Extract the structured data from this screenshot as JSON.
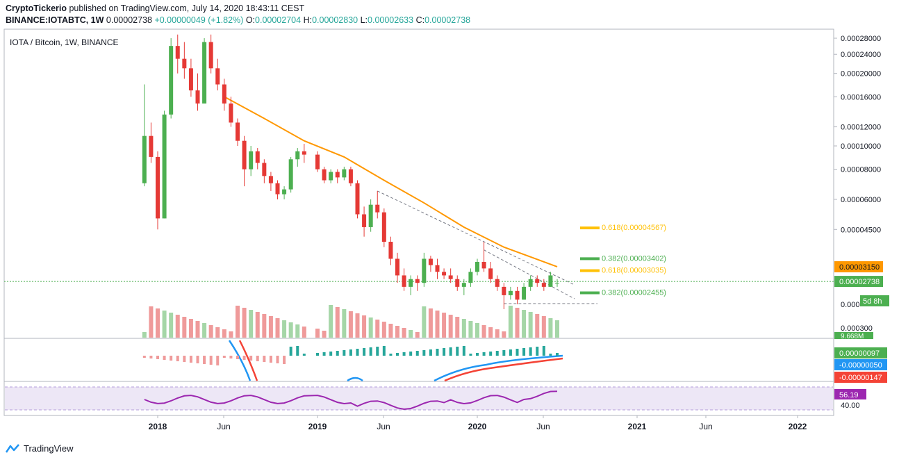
{
  "header": {
    "publisher": "CryptoTickerio",
    "published_text": "published on TradingView.com, July 14, 2020 18:43:11 CEST",
    "symbol": "BINANCE:IOTABTC, 1W",
    "last": "0.00002738",
    "change": "+0.00000049 (+1.82%)",
    "open_label": "O:",
    "open": "0.00002704",
    "high_label": "H:",
    "high": "0.00002830",
    "low_label": "L:",
    "low": "0.00002633",
    "close_label": "C:",
    "close": "0.00002738"
  },
  "legend": "IOTA / Bitcoin, 1W, BINANCE",
  "footer": {
    "brand": "TradingView"
  },
  "colors": {
    "up": "#4caf50",
    "down": "#e53935",
    "ma": "#ff9800",
    "macd": "#2196f3",
    "signal": "#f44336",
    "rsi": "#9c27b0",
    "price_line": "#4caf50",
    "band": "#ede7f6"
  },
  "chart_data": {
    "type": "candlestick",
    "title": "IOTA / Bitcoin, 1W, BINANCE",
    "scale": "log",
    "x_ticks": [
      "2018",
      "Jun",
      "2019",
      "Jun",
      "2020",
      "Jun",
      "2021",
      "Jun",
      "2022"
    ],
    "y_ticks": [
      "0.00028000",
      "0.00024000",
      "0.00020000",
      "0.00016000",
      "0.00012000",
      "0.00010000",
      "0.00008000",
      "0.00006000",
      "0.00004500",
      "0.00003150",
      "0.00002738",
      "0.000"
    ],
    "volume_ticks": [
      "0.000300",
      "9.668M"
    ],
    "price_labels": {
      "ma_value": "0.00003150",
      "last_price": "0.00002738",
      "countdown": "5d 8h"
    },
    "fib_levels": [
      {
        "label": "0.618(0.00004567)",
        "value": 4.567e-05
      },
      {
        "label": "0.382(0.00003402)",
        "value": 3.402e-05
      },
      {
        "label": "0.618(0.00003035)",
        "value": 3.035e-05
      },
      {
        "label": "0.382(0.00002455)",
        "value": 2.455e-05
      }
    ],
    "candles": [
      {
        "t": "2017-12",
        "o": 7e-05,
        "h": 0.00018,
        "l": 6.8e-05,
        "c": 0.00011
      },
      {
        "t": "2017-12b",
        "o": 0.00011,
        "h": 0.000125,
        "l": 8.5e-05,
        "c": 9e-05
      },
      {
        "t": "2018-01",
        "o": 9e-05,
        "h": 9.5e-05,
        "l": 4.5e-05,
        "c": 5e-05
      },
      {
        "t": "2018-01b",
        "o": 5e-05,
        "h": 0.00014,
        "l": 5e-05,
        "c": 0.000135
      },
      {
        "t": "2018-02",
        "o": 0.000135,
        "h": 0.00028,
        "l": 0.00013,
        "c": 0.00026
      },
      {
        "t": "2018-02b",
        "o": 0.00026,
        "h": 0.00029,
        "l": 0.0002,
        "c": 0.00023
      },
      {
        "t": "2018-03",
        "o": 0.00023,
        "h": 0.00027,
        "l": 0.00019,
        "c": 0.00021
      },
      {
        "t": "2018-03b",
        "o": 0.00021,
        "h": 0.00023,
        "l": 0.00016,
        "c": 0.00017
      },
      {
        "t": "2018-04",
        "o": 0.00017,
        "h": 0.0002,
        "l": 0.00014,
        "c": 0.00015
      },
      {
        "t": "2018-04b",
        "o": 0.00015,
        "h": 0.00028,
        "l": 0.00015,
        "c": 0.00027
      },
      {
        "t": "2018-05",
        "o": 0.00027,
        "h": 0.00029,
        "l": 0.0002,
        "c": 0.00021
      },
      {
        "t": "2018-05b",
        "o": 0.00021,
        "h": 0.00023,
        "l": 0.00017,
        "c": 0.00018
      },
      {
        "t": "2018-06",
        "o": 0.00018,
        "h": 0.00019,
        "l": 0.00014,
        "c": 0.00015
      },
      {
        "t": "2018-06b",
        "o": 0.00015,
        "h": 0.00016,
        "l": 0.00012,
        "c": 0.000125
      },
      {
        "t": "2018-07",
        "o": 0.000125,
        "h": 0.00013,
        "l": 0.0001,
        "c": 0.000105
      },
      {
        "t": "2018-07b",
        "o": 0.000105,
        "h": 0.00011,
        "l": 6.8e-05,
        "c": 8e-05
      },
      {
        "t": "2018-08",
        "o": 8e-05,
        "h": 0.0001,
        "l": 7.5e-05,
        "c": 9.5e-05
      },
      {
        "t": "2018-08b",
        "o": 9.5e-05,
        "h": 9.8e-05,
        "l": 8e-05,
        "c": 8.5e-05
      },
      {
        "t": "2018-09",
        "o": 8.5e-05,
        "h": 8.8e-05,
        "l": 7e-05,
        "c": 7.5e-05
      },
      {
        "t": "2018-09b",
        "o": 7.5e-05,
        "h": 7.8e-05,
        "l": 6.5e-05,
        "c": 7e-05
      },
      {
        "t": "2018-10",
        "o": 7e-05,
        "h": 7.2e-05,
        "l": 6e-05,
        "c": 6.3e-05
      },
      {
        "t": "2018-10b",
        "o": 6.3e-05,
        "h": 6.8e-05,
        "l": 6e-05,
        "c": 6.6e-05
      },
      {
        "t": "2018-11",
        "o": 6.6e-05,
        "h": 9e-05,
        "l": 6.4e-05,
        "c": 8.8e-05
      },
      {
        "t": "2018-11b",
        "o": 8.8e-05,
        "h": 9.8e-05,
        "l": 8.2e-05,
        "c": 9.5e-05
      },
      {
        "t": "2018-12",
        "o": 9.5e-05,
        "h": 0.000102,
        "l": 8.5e-05,
        "c": 9.2e-05
      },
      {
        "t": "2019-01",
        "o": 9.2e-05,
        "h": 9.5e-05,
        "l": 7.8e-05,
        "c": 8e-05
      },
      {
        "t": "2019-01b",
        "o": 8e-05,
        "h": 8.2e-05,
        "l": 7e-05,
        "c": 7.2e-05
      },
      {
        "t": "2019-02",
        "o": 7.2e-05,
        "h": 8e-05,
        "l": 7e-05,
        "c": 7.8e-05
      },
      {
        "t": "2019-02b",
        "o": 7.8e-05,
        "h": 8e-05,
        "l": 7e-05,
        "c": 7.4e-05
      },
      {
        "t": "2019-03",
        "o": 7.4e-05,
        "h": 8.2e-05,
        "l": 7.2e-05,
        "c": 8e-05
      },
      {
        "t": "2019-03b",
        "o": 8e-05,
        "h": 8.2e-05,
        "l": 6.8e-05,
        "c": 7e-05
      },
      {
        "t": "2019-04",
        "o": 7e-05,
        "h": 7.2e-05,
        "l": 5e-05,
        "c": 5.2e-05
      },
      {
        "t": "2019-04b",
        "o": 5.2e-05,
        "h": 5.6e-05,
        "l": 4.2e-05,
        "c": 4.6e-05
      },
      {
        "t": "2019-05",
        "o": 4.6e-05,
        "h": 6e-05,
        "l": 4.4e-05,
        "c": 5.7e-05
      },
      {
        "t": "2019-05b",
        "o": 5.7e-05,
        "h": 6.5e-05,
        "l": 5e-05,
        "c": 5.3e-05
      },
      {
        "t": "2019-06",
        "o": 5.3e-05,
        "h": 5.5e-05,
        "l": 3.8e-05,
        "c": 4e-05
      },
      {
        "t": "2019-06b",
        "o": 4e-05,
        "h": 4.2e-05,
        "l": 3.2e-05,
        "c": 3.4e-05
      },
      {
        "t": "2019-07",
        "o": 3.4e-05,
        "h": 3.6e-05,
        "l": 2.7e-05,
        "c": 2.9e-05
      },
      {
        "t": "2019-07b",
        "o": 2.9e-05,
        "h": 3.1e-05,
        "l": 2.5e-05,
        "c": 2.6e-05
      },
      {
        "t": "2019-08",
        "o": 2.6e-05,
        "h": 2.9e-05,
        "l": 2.4e-05,
        "c": 2.8e-05
      },
      {
        "t": "2019-08b",
        "o": 2.8e-05,
        "h": 2.9e-05,
        "l": 2.5e-05,
        "c": 2.7e-05
      },
      {
        "t": "2019-09",
        "o": 2.7e-05,
        "h": 3.6e-05,
        "l": 2.6e-05,
        "c": 3.4e-05
      },
      {
        "t": "2019-09b",
        "o": 3.4e-05,
        "h": 3.5e-05,
        "l": 3e-05,
        "c": 3.2e-05
      },
      {
        "t": "2019-10",
        "o": 3.2e-05,
        "h": 3.4e-05,
        "l": 2.8e-05,
        "c": 3e-05
      },
      {
        "t": "2019-10b",
        "o": 3e-05,
        "h": 3.1e-05,
        "l": 2.8e-05,
        "c": 2.9e-05
      },
      {
        "t": "2019-11",
        "o": 2.9e-05,
        "h": 3.1e-05,
        "l": 2.7e-05,
        "c": 2.8e-05
      },
      {
        "t": "2019-11b",
        "o": 2.8e-05,
        "h": 2.9e-05,
        "l": 2.5e-05,
        "c": 2.6e-05
      },
      {
        "t": "2019-12",
        "o": 2.6e-05,
        "h": 2.8e-05,
        "l": 2.4e-05,
        "c": 2.7e-05
      },
      {
        "t": "2019-12b",
        "o": 2.7e-05,
        "h": 3.1e-05,
        "l": 2.6e-05,
        "c": 3e-05
      },
      {
        "t": "2020-01",
        "o": 3e-05,
        "h": 3.4e-05,
        "l": 2.9e-05,
        "c": 3.3e-05
      },
      {
        "t": "2020-01b",
        "o": 3.3e-05,
        "h": 4e-05,
        "l": 3e-05,
        "c": 3.1e-05
      },
      {
        "t": "2020-02",
        "o": 3.1e-05,
        "h": 3.3e-05,
        "l": 2.7e-05,
        "c": 2.8e-05
      },
      {
        "t": "2020-02b",
        "o": 2.8e-05,
        "h": 2.9e-05,
        "l": 2.5e-05,
        "c": 2.6e-05
      },
      {
        "t": "2020-03",
        "o": 2.6e-05,
        "h": 2.7e-05,
        "l": 2.1e-05,
        "c": 2.4e-05
      },
      {
        "t": "2020-03b",
        "o": 2.4e-05,
        "h": 2.6e-05,
        "l": 2.3e-05,
        "c": 2.5e-05
      },
      {
        "t": "2020-04",
        "o": 2.5e-05,
        "h": 2.6e-05,
        "l": 2.2e-05,
        "c": 2.3e-05
      },
      {
        "t": "2020-04b",
        "o": 2.3e-05,
        "h": 2.7e-05,
        "l": 2.3e-05,
        "c": 2.6e-05
      },
      {
        "t": "2020-05",
        "o": 2.6e-05,
        "h": 2.9e-05,
        "l": 2.5e-05,
        "c": 2.8e-05
      },
      {
        "t": "2020-05b",
        "o": 2.8e-05,
        "h": 2.9e-05,
        "l": 2.6e-05,
        "c": 2.7e-05
      },
      {
        "t": "2020-06",
        "o": 2.7e-05,
        "h": 2.8e-05,
        "l": 2.5e-05,
        "c": 2.6e-05
      },
      {
        "t": "2020-06b",
        "o": 2.6e-05,
        "h": 3e-05,
        "l": 2.6e-05,
        "c": 2.9e-05
      },
      {
        "t": "2020-07",
        "o": 2.7e-05,
        "h": 2.8e-05,
        "l": 2.6e-05,
        "c": 2.7e-05
      }
    ],
    "ma_series": [
      {
        "t": "2018-06",
        "v": 0.00016
      },
      {
        "t": "2018-09",
        "v": 0.00013
      },
      {
        "t": "2018-12",
        "v": 0.000105
      },
      {
        "t": "2019-03",
        "v": 9e-05
      },
      {
        "t": "2019-06",
        "v": 7.2e-05
      },
      {
        "t": "2019-09",
        "v": 5.8e-05
      },
      {
        "t": "2019-12",
        "v": 4.6e-05
      },
      {
        "t": "2020-03",
        "v": 3.8e-05
      },
      {
        "t": "2020-07",
        "v": 3.15e-05
      }
    ],
    "indicators": {
      "macd_labels": [
        "0.00000097",
        "-0.00000050",
        "-0.00000147"
      ],
      "rsi_value": "56.19",
      "rsi_tick": "40.00"
    }
  }
}
